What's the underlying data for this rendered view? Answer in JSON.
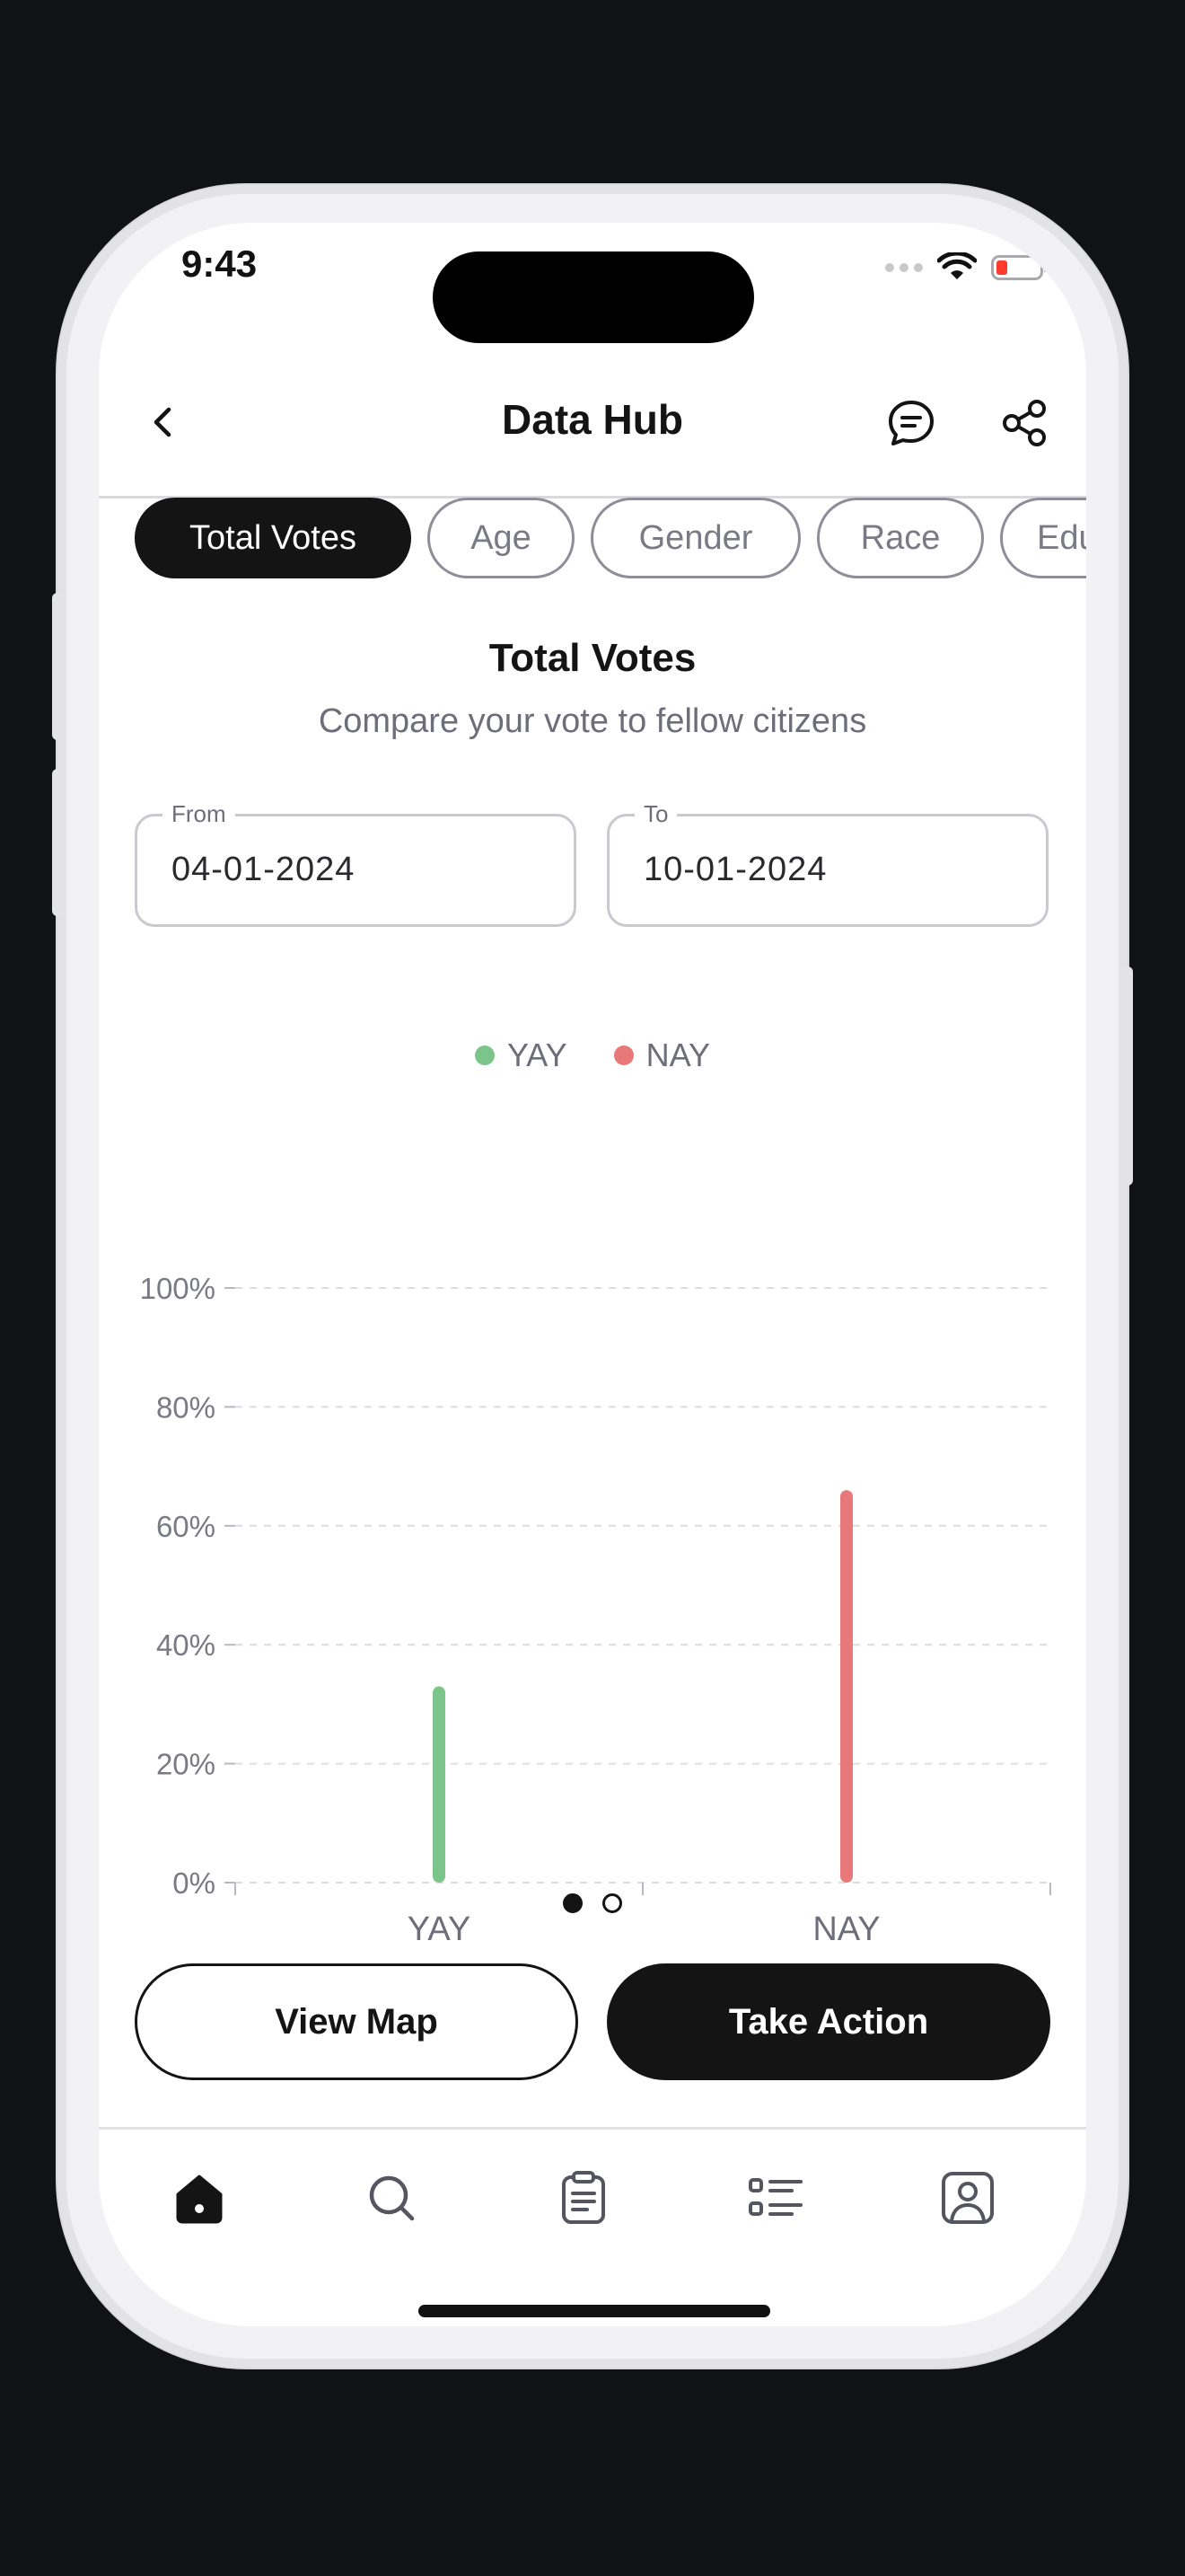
{
  "status_bar": {
    "time": "9:43"
  },
  "header": {
    "title": "Data Hub"
  },
  "chips": [
    {
      "label": "Total Votes",
      "active": true
    },
    {
      "label": "Age",
      "active": false
    },
    {
      "label": "Gender",
      "active": false
    },
    {
      "label": "Race",
      "active": false
    },
    {
      "label": "Edu",
      "active": false
    }
  ],
  "section": {
    "title": "Total Votes",
    "subtitle": "Compare your vote to fellow citizens"
  },
  "dates": {
    "from_label": "From",
    "from_value": "04-01-2024",
    "to_label": "To",
    "to_value": "10-01-2024"
  },
  "chart_data": {
    "type": "bar",
    "categories": [
      "YAY",
      "NAY"
    ],
    "series": [
      {
        "name": "YAY",
        "color": "#7cc58a",
        "values": [
          33,
          null
        ]
      },
      {
        "name": "NAY",
        "color": "#e8787a",
        "values": [
          null,
          66
        ]
      }
    ],
    "y_ticks": [
      "0%",
      "20%",
      "40%",
      "60%",
      "80%",
      "100%"
    ],
    "ylim": [
      0,
      100
    ],
    "legend_position": "top-center",
    "grid": true
  },
  "buttons": {
    "view_map": "View Map",
    "take_action": "Take Action"
  },
  "colors": {
    "accent": "#141414",
    "yay": "#7cc58a",
    "nay": "#e8787a",
    "muted_text": "#6e6e7a"
  },
  "tabbar": {
    "items": [
      "home-icon",
      "search-icon",
      "clipboard-icon",
      "list-icon",
      "profile-icon"
    ],
    "active": "home-icon"
  }
}
